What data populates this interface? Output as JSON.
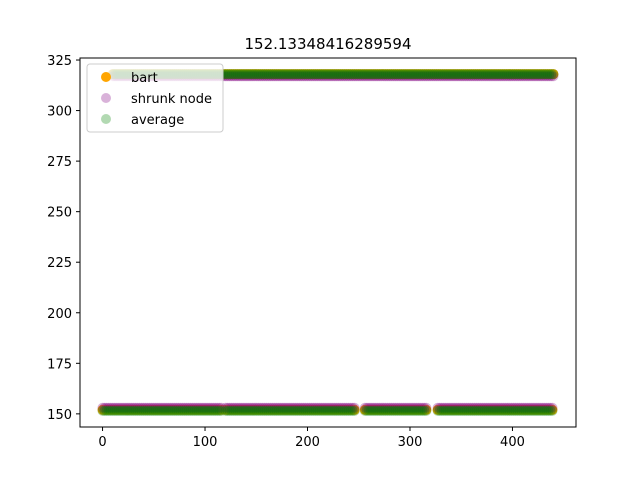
{
  "chart_data": {
    "type": "scatter",
    "title": "152.13348416289594",
    "xlabel": "",
    "ylabel": "",
    "xlim": [
      -22,
      462
    ],
    "ylim": [
      143.5,
      326
    ],
    "x_ticks": [
      0,
      100,
      200,
      300,
      400
    ],
    "y_ticks": [
      150,
      175,
      200,
      225,
      250,
      275,
      300,
      325
    ],
    "grid": false,
    "legend_position": "upper-left",
    "series": [
      {
        "name": "bart",
        "color": "#ffa500",
        "alpha": 1.0,
        "marker": "circle",
        "levels": [
          {
            "y": 152,
            "x_ranges": [
              [
                0,
                117
              ],
              [
                120,
                247
              ],
              [
                256,
                316
              ],
              [
                327,
                440
              ]
            ]
          },
          {
            "y": 318,
            "x_ranges": [
              [
                10,
                440
              ]
            ]
          }
        ]
      },
      {
        "name": "shrunk node",
        "color": "#800080",
        "alpha": 0.3,
        "marker": "circle",
        "levels": [
          {
            "y": 153,
            "x_ranges": [
              [
                0,
                117
              ],
              [
                120,
                247
              ],
              [
                256,
                316
              ],
              [
                327,
                440
              ]
            ]
          },
          {
            "y": 317,
            "x_ranges": [
              [
                10,
                440
              ]
            ]
          }
        ]
      },
      {
        "name": "average",
        "color": "#008000",
        "alpha": 0.3,
        "marker": "circle",
        "levels": [
          {
            "y": 151.5,
            "x_ranges": [
              [
                0,
                117
              ],
              [
                120,
                247
              ],
              [
                256,
                316
              ],
              [
                327,
                440
              ]
            ]
          },
          {
            "y": 318,
            "x_ranges": [
              [
                10,
                440
              ]
            ]
          }
        ]
      }
    ]
  }
}
